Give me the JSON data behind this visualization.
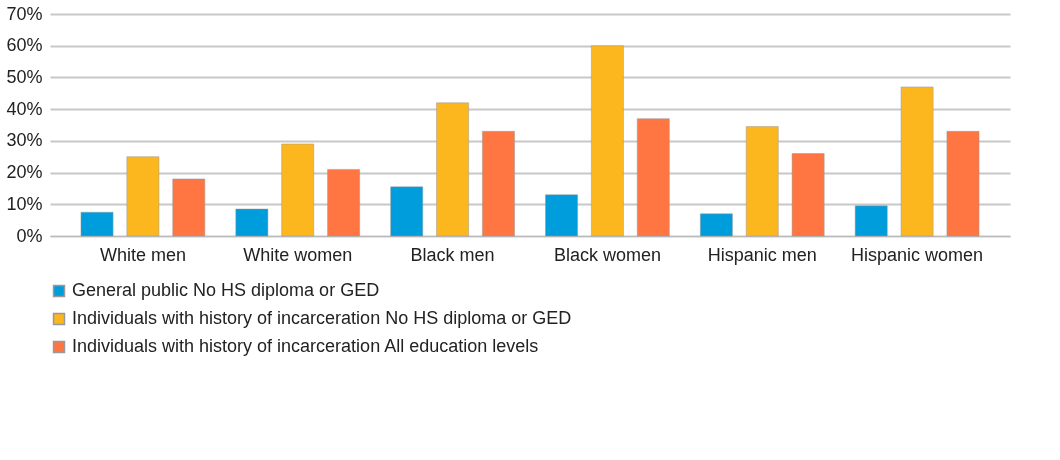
{
  "chart_data": {
    "type": "bar",
    "categories": [
      "White men",
      "White women",
      "Black men",
      "Black women",
      "Hispanic men",
      "Hispanic women"
    ],
    "series": [
      {
        "name": "General public No HS diploma or GED",
        "color": "#009ddc",
        "values": [
          7.5,
          8.5,
          15.5,
          13,
          7,
          9.5
        ]
      },
      {
        "name": "Individuals with history of incarceration No HS diploma or GED",
        "color": "#fdb71e",
        "values": [
          25,
          29,
          42,
          60,
          34.5,
          47
        ]
      },
      {
        "name": "Individuals with history of incarceration All education levels",
        "color": "#ff7643",
        "values": [
          18,
          21,
          33,
          37,
          26,
          33
        ]
      }
    ],
    "ylim": [
      0,
      70
    ],
    "yticks": [
      {
        "value": 0,
        "label": "0%"
      },
      {
        "value": 10,
        "label": "10%"
      },
      {
        "value": 20,
        "label": "20%"
      },
      {
        "value": 30,
        "label": "30%"
      },
      {
        "value": 40,
        "label": "40%"
      },
      {
        "value": 50,
        "label": "50%"
      },
      {
        "value": 60,
        "label": "60%"
      },
      {
        "value": 70,
        "label": "70%"
      }
    ],
    "grid": "y",
    "legend": "bottom"
  }
}
